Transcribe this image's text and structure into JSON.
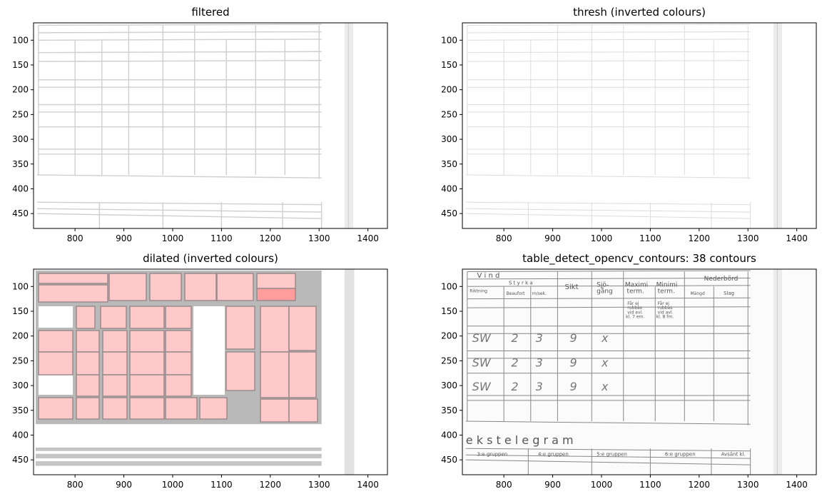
{
  "figure": {
    "panels": [
      {
        "id": "filtered",
        "title": "filtered"
      },
      {
        "id": "thresh",
        "title": "thresh (inverted colours)"
      },
      {
        "id": "dilated",
        "title": "dilated (inverted colours)"
      },
      {
        "id": "contours",
        "title": "table_detect_opencv_contours: 38 contours"
      }
    ],
    "x_ticks": [
      "800",
      "900",
      "1000",
      "1100",
      "1200",
      "1300",
      "1400"
    ],
    "y_ticks": [
      "100",
      "150",
      "200",
      "250",
      "300",
      "350",
      "400",
      "450"
    ]
  },
  "chart_data": [
    {
      "type": "image",
      "title": "filtered",
      "xlim": [
        715,
        1440
      ],
      "ylim": [
        480,
        65
      ],
      "xticks": [
        800,
        900,
        1000,
        1100,
        1200,
        1300,
        1400
      ],
      "yticks": [
        100,
        150,
        200,
        250,
        300,
        350,
        400,
        450
      ]
    },
    {
      "type": "image",
      "title": "thresh (inverted colours)",
      "xlim": [
        715,
        1440
      ],
      "ylim": [
        480,
        65
      ],
      "xticks": [
        800,
        900,
        1000,
        1100,
        1200,
        1300,
        1400
      ],
      "yticks": [
        100,
        150,
        200,
        250,
        300,
        350,
        400,
        450
      ]
    },
    {
      "type": "image",
      "title": "dilated (inverted colours)",
      "xlim": [
        715,
        1440
      ],
      "ylim": [
        480,
        65
      ],
      "xticks": [
        800,
        900,
        1000,
        1100,
        1200,
        1300,
        1400
      ],
      "yticks": [
        100,
        150,
        200,
        250,
        300,
        350,
        400,
        450
      ]
    },
    {
      "type": "image",
      "title": "table_detect_opencv_contours: 38 contours",
      "xlim": [
        715,
        1440
      ],
      "ylim": [
        480,
        65
      ],
      "xticks": [
        800,
        900,
        1000,
        1100,
        1200,
        1300,
        1400
      ],
      "yticks": [
        100,
        150,
        200,
        250,
        300,
        350,
        400,
        450
      ],
      "contour_count": 38
    }
  ],
  "form": {
    "headers": [
      "V i n d",
      "S t y r k a",
      "Riktning",
      "Beaufort",
      "m/sek.",
      "Sikt",
      "Sjö-",
      "gång",
      "Maximi",
      "term.",
      "Minimi",
      "term.",
      "Nederbörd",
      "Mängd",
      "Slag"
    ],
    "notes": [
      "Får ej",
      "rubbas",
      "vid avl.",
      "kl. 7 em.",
      "Får ej",
      "rubbas",
      "vid avl.",
      "kl. 8 fm."
    ],
    "handwriting": [
      "SW",
      "2",
      "3",
      "9",
      "x",
      "SW",
      "2",
      "3",
      "9",
      "x",
      "SW",
      "2",
      "3",
      "9",
      "x"
    ],
    "telegram": "e k s t e l e g r a m",
    "groups": [
      "3:e gruppen",
      "4:e gruppen",
      "5:e gruppen",
      "6:e gruppen",
      "Avsänt kl."
    ]
  }
}
